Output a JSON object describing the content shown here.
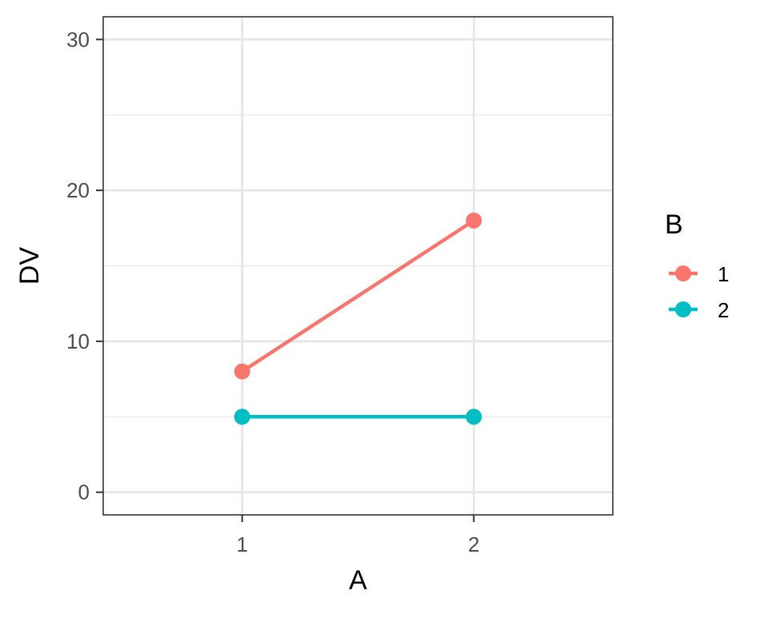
{
  "chart_data": {
    "type": "line",
    "x": [
      "1",
      "2"
    ],
    "series": [
      {
        "name": "1",
        "color": "#F8766D",
        "values": [
          8,
          18
        ]
      },
      {
        "name": "2",
        "color": "#00BFC4",
        "values": [
          5,
          5
        ]
      }
    ],
    "xlabel": "A",
    "ylabel": "DV",
    "xlim": [
      0.4,
      2.6
    ],
    "ylim": [
      -1.5,
      31.5
    ],
    "yticks": [
      0,
      10,
      20,
      30
    ],
    "y_minor_ticks": [
      5,
      15,
      25
    ],
    "grid": true,
    "legend": {
      "title": "B",
      "placement": "right"
    }
  }
}
